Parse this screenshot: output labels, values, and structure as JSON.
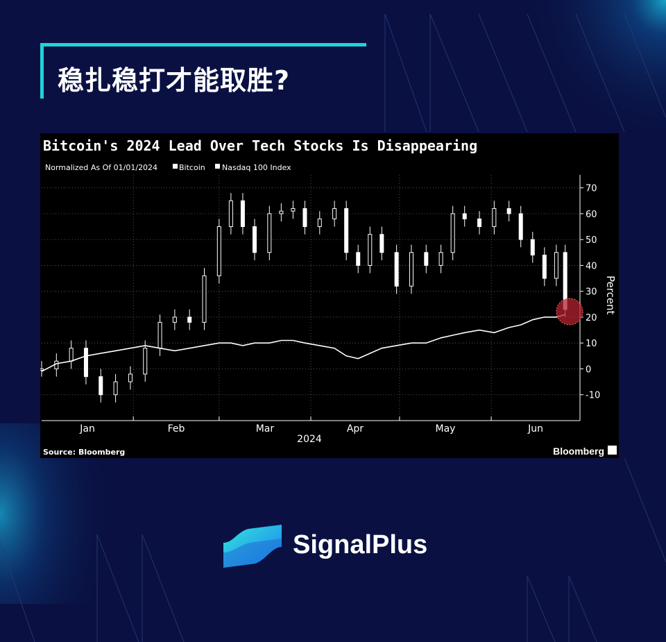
{
  "headline": "稳扎稳打才能取胜?",
  "brand": {
    "name": "SignalPlus"
  },
  "colors": {
    "background": "#0a1142",
    "accent": "#21d2d6",
    "highlight": "#b3222c"
  },
  "chart_data": {
    "type": "line",
    "title": "Bitcoin's 2024 Lead Over Tech Stocks Is Disappearing",
    "subtitle": "Normalized As Of 01/01/2024",
    "source": "Source: Bloomberg",
    "watermark": "Bloomberg",
    "ylabel": "Percent",
    "xlabel": "2024",
    "x_ticks": [
      "Jan",
      "Feb",
      "Mar",
      "Apr",
      "May",
      "Jun"
    ],
    "y_ticks": [
      -10,
      0,
      10,
      20,
      30,
      40,
      50,
      60,
      70
    ],
    "ylim": [
      -20,
      75
    ],
    "grid": true,
    "legend_position": "top-left",
    "series": [
      {
        "name": "Bitcoin",
        "style": "candlestick",
        "x": [
          "2024-01-01",
          "2024-01-06",
          "2024-01-11",
          "2024-01-16",
          "2024-01-21",
          "2024-01-26",
          "2024-01-31",
          "2024-02-05",
          "2024-02-10",
          "2024-02-15",
          "2024-02-20",
          "2024-02-25",
          "2024-03-01",
          "2024-03-05",
          "2024-03-09",
          "2024-03-13",
          "2024-03-18",
          "2024-03-22",
          "2024-03-26",
          "2024-03-30",
          "2024-04-04",
          "2024-04-09",
          "2024-04-13",
          "2024-04-17",
          "2024-04-21",
          "2024-04-25",
          "2024-04-30",
          "2024-05-05",
          "2024-05-10",
          "2024-05-15",
          "2024-05-19",
          "2024-05-23",
          "2024-05-28",
          "2024-06-02",
          "2024-06-07",
          "2024-06-11",
          "2024-06-15",
          "2024-06-19",
          "2024-06-23",
          "2024-06-26"
        ],
        "values": [
          0,
          3,
          8,
          -3,
          -10,
          -5,
          -2,
          8,
          18,
          20,
          18,
          36,
          55,
          65,
          55,
          45,
          60,
          61,
          62,
          55,
          58,
          62,
          45,
          40,
          52,
          45,
          32,
          45,
          40,
          45,
          60,
          58,
          55,
          62,
          60,
          50,
          44,
          35,
          45,
          23
        ]
      },
      {
        "name": "Nasdaq 100 Index",
        "style": "line",
        "x": [
          "2024-01-01",
          "2024-01-06",
          "2024-01-11",
          "2024-01-16",
          "2024-01-21",
          "2024-01-26",
          "2024-01-31",
          "2024-02-05",
          "2024-02-10",
          "2024-02-15",
          "2024-02-20",
          "2024-02-25",
          "2024-03-01",
          "2024-03-05",
          "2024-03-09",
          "2024-03-13",
          "2024-03-18",
          "2024-03-22",
          "2024-03-26",
          "2024-03-30",
          "2024-04-04",
          "2024-04-09",
          "2024-04-13",
          "2024-04-17",
          "2024-04-21",
          "2024-04-25",
          "2024-04-30",
          "2024-05-05",
          "2024-05-10",
          "2024-05-15",
          "2024-05-19",
          "2024-05-23",
          "2024-05-28",
          "2024-06-02",
          "2024-06-07",
          "2024-06-11",
          "2024-06-15",
          "2024-06-19",
          "2024-06-23",
          "2024-06-26"
        ],
        "values": [
          -1,
          2,
          3,
          5,
          6,
          7,
          8,
          9,
          8,
          7,
          8,
          9,
          10,
          10,
          9,
          10,
          10,
          11,
          11,
          10,
          9,
          8,
          5,
          4,
          6,
          8,
          9,
          10,
          10,
          12,
          13,
          14,
          15,
          14,
          16,
          17,
          19,
          20,
          20,
          21
        ]
      }
    ]
  }
}
